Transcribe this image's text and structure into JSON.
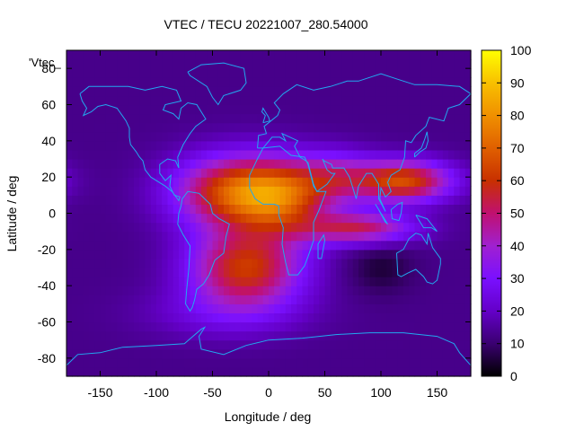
{
  "chart_data": {
    "type": "heatmap",
    "title": "VTEC / TECU 20221007_280.54000",
    "xlabel": "Longitude / deg",
    "ylabel": "Latitude / deg",
    "key_label": "'Vtec_",
    "xlim": [
      -180,
      180
    ],
    "ylim": [
      -90,
      90
    ],
    "x_ticks": [
      -150,
      -100,
      -50,
      0,
      50,
      100,
      150
    ],
    "y_ticks": [
      -80,
      -60,
      -40,
      -20,
      0,
      20,
      40,
      60,
      80
    ],
    "colorbar": {
      "range": [
        0,
        100
      ],
      "ticks": [
        0,
        10,
        20,
        30,
        40,
        50,
        60,
        70,
        80,
        90,
        100
      ],
      "colors": [
        "#000000",
        "#3a0070",
        "#6400c8",
        "#7a10ff",
        "#a020d0",
        "#c01070",
        "#c83000",
        "#e06000",
        "#f09000",
        "#f8c000",
        "#ffff00"
      ]
    },
    "grid": {
      "lon_step": 5,
      "lat_step": 5
    },
    "model": {
      "background_tec": 13,
      "components": [
        {
          "name": "americas-atlantic-peak",
          "lon": -25,
          "lat": 12,
          "sigma_lon": 40,
          "sigma_lat": 14,
          "amp": 56
        },
        {
          "name": "africa-peak",
          "lon": 15,
          "lat": 8,
          "sigma_lon": 28,
          "sigma_lat": 14,
          "amp": 30
        },
        {
          "name": "south-atlantic-band",
          "lon": -20,
          "lat": -30,
          "sigma_lon": 35,
          "sigma_lat": 15,
          "amp": 48
        },
        {
          "name": "indian-ocean-arm",
          "lon": 80,
          "lat": -8,
          "sigma_lon": 35,
          "sigma_lat": 6,
          "amp": 38
        },
        {
          "name": "asia-arm",
          "lon": 120,
          "lat": 18,
          "sigma_lon": 30,
          "sigma_lat": 8,
          "amp": 52
        },
        {
          "name": "arabia-arm",
          "lon": 60,
          "lat": 20,
          "sigma_lon": 25,
          "sigma_lat": 10,
          "amp": 25
        },
        {
          "name": "southern-hemisphere-fill",
          "lon": -40,
          "lat": -55,
          "sigma_lon": 50,
          "sigma_lat": 10,
          "amp": 10
        },
        {
          "name": "australia-low",
          "lon": 100,
          "lat": -30,
          "sigma_lon": 20,
          "sigma_lat": 10,
          "amp": -8
        }
      ]
    },
    "coastlines": [
      {
        "name": "north-america",
        "points": [
          [
            -168,
            66
          ],
          [
            -160,
            70
          ],
          [
            -140,
            70
          ],
          [
            -125,
            70
          ],
          [
            -110,
            68
          ],
          [
            -95,
            70
          ],
          [
            -82,
            68
          ],
          [
            -78,
            62
          ],
          [
            -92,
            60
          ],
          [
            -94,
            57
          ],
          [
            -85,
            55
          ],
          [
            -80,
            52
          ],
          [
            -78,
            58
          ],
          [
            -72,
            61
          ],
          [
            -64,
            60
          ],
          [
            -56,
            52
          ],
          [
            -65,
            48
          ],
          [
            -70,
            44
          ],
          [
            -76,
            38
          ],
          [
            -81,
            31
          ],
          [
            -80,
            25
          ],
          [
            -83,
            29
          ],
          [
            -90,
            30
          ],
          [
            -97,
            27
          ],
          [
            -97,
            22
          ],
          [
            -92,
            18
          ],
          [
            -87,
            21
          ],
          [
            -88,
            15
          ],
          [
            -84,
            10
          ],
          [
            -79,
            9
          ],
          [
            -80,
            7
          ],
          [
            -86,
            12
          ],
          [
            -92,
            15
          ],
          [
            -105,
            20
          ],
          [
            -110,
            24
          ],
          [
            -112,
            29
          ],
          [
            -115,
            31
          ],
          [
            -118,
            34
          ],
          [
            -123,
            38
          ],
          [
            -124,
            42
          ],
          [
            -124,
            47
          ],
          [
            -127,
            51
          ],
          [
            -135,
            58
          ],
          [
            -145,
            60
          ],
          [
            -152,
            59
          ],
          [
            -158,
            56
          ],
          [
            -165,
            54
          ],
          [
            -162,
            58
          ],
          [
            -166,
            62
          ],
          [
            -168,
            66
          ]
        ]
      },
      {
        "name": "greenland",
        "points": [
          [
            -72,
            78
          ],
          [
            -60,
            82
          ],
          [
            -40,
            83
          ],
          [
            -22,
            80
          ],
          [
            -20,
            72
          ],
          [
            -25,
            68
          ],
          [
            -40,
            65
          ],
          [
            -45,
            60
          ],
          [
            -50,
            64
          ],
          [
            -55,
            70
          ],
          [
            -70,
            76
          ],
          [
            -72,
            78
          ]
        ]
      },
      {
        "name": "south-america",
        "points": [
          [
            -77,
            8
          ],
          [
            -72,
            12
          ],
          [
            -62,
            11
          ],
          [
            -52,
            5
          ],
          [
            -50,
            0
          ],
          [
            -44,
            -3
          ],
          [
            -35,
            -6
          ],
          [
            -38,
            -13
          ],
          [
            -40,
            -22
          ],
          [
            -48,
            -26
          ],
          [
            -53,
            -34
          ],
          [
            -58,
            -39
          ],
          [
            -64,
            -42
          ],
          [
            -66,
            -48
          ],
          [
            -68,
            -52
          ],
          [
            -70,
            -54
          ],
          [
            -74,
            -50
          ],
          [
            -73,
            -42
          ],
          [
            -71,
            -30
          ],
          [
            -70,
            -18
          ],
          [
            -76,
            -12
          ],
          [
            -81,
            -6
          ],
          [
            -80,
            0
          ],
          [
            -78,
            4
          ],
          [
            -77,
            8
          ]
        ]
      },
      {
        "name": "africa",
        "points": [
          [
            -17,
            21
          ],
          [
            -10,
            30
          ],
          [
            -5,
            36
          ],
          [
            10,
            37
          ],
          [
            20,
            32
          ],
          [
            32,
            31
          ],
          [
            35,
            27
          ],
          [
            40,
            15
          ],
          [
            43,
            12
          ],
          [
            51,
            12
          ],
          [
            45,
            2
          ],
          [
            40,
            -5
          ],
          [
            40,
            -15
          ],
          [
            35,
            -24
          ],
          [
            32,
            -29
          ],
          [
            26,
            -34
          ],
          [
            18,
            -34
          ],
          [
            15,
            -27
          ],
          [
            12,
            -17
          ],
          [
            13,
            -8
          ],
          [
            9,
            -1
          ],
          [
            9,
            4
          ],
          [
            5,
            5
          ],
          [
            -5,
            5
          ],
          [
            -12,
            8
          ],
          [
            -17,
            14
          ],
          [
            -17,
            21
          ]
        ]
      },
      {
        "name": "eurasia",
        "points": [
          [
            -10,
            36
          ],
          [
            -9,
            43
          ],
          [
            -2,
            44
          ],
          [
            -4,
            48
          ],
          [
            2,
            51
          ],
          [
            8,
            54
          ],
          [
            10,
            57
          ],
          [
            5,
            61
          ],
          [
            13,
            66
          ],
          [
            25,
            71
          ],
          [
            40,
            68
          ],
          [
            55,
            70
          ],
          [
            70,
            73
          ],
          [
            80,
            73
          ],
          [
            100,
            77
          ],
          [
            115,
            74
          ],
          [
            130,
            71
          ],
          [
            150,
            71
          ],
          [
            170,
            70
          ],
          [
            180,
            66
          ],
          [
            170,
            60
          ],
          [
            160,
            58
          ],
          [
            156,
            51
          ],
          [
            143,
            53
          ],
          [
            140,
            48
          ],
          [
            131,
            43
          ],
          [
            127,
            39
          ],
          [
            122,
            40
          ],
          [
            121,
            31
          ],
          [
            117,
            24
          ],
          [
            109,
            21
          ],
          [
            106,
            17
          ],
          [
            109,
            12
          ],
          [
            104,
            9
          ],
          [
            100,
            14
          ],
          [
            99,
            8
          ],
          [
            104,
            1
          ],
          [
            98,
            8
          ],
          [
            98,
            16
          ],
          [
            92,
            22
          ],
          [
            87,
            22
          ],
          [
            80,
            15
          ],
          [
            78,
            8
          ],
          [
            72,
            20
          ],
          [
            67,
            25
          ],
          [
            57,
            25
          ],
          [
            56,
            27
          ],
          [
            49,
            29
          ],
          [
            48,
            30
          ],
          [
            52,
            24
          ],
          [
            56,
            22
          ],
          [
            59,
            22
          ],
          [
            52,
            16
          ],
          [
            43,
            12
          ],
          [
            40,
            16
          ],
          [
            35,
            28
          ],
          [
            33,
            29
          ],
          [
            28,
            31
          ],
          [
            23,
            37
          ],
          [
            26,
            40
          ],
          [
            12,
            44
          ],
          [
            15,
            40
          ],
          [
            10,
            42
          ],
          [
            3,
            42
          ],
          [
            -5,
            36
          ],
          [
            -10,
            36
          ]
        ]
      },
      {
        "name": "great-britain",
        "points": [
          [
            -5,
            50
          ],
          [
            1,
            51
          ],
          [
            0,
            53
          ],
          [
            -3,
            56
          ],
          [
            -5,
            58
          ],
          [
            -6,
            56
          ],
          [
            -3,
            54
          ],
          [
            -5,
            50
          ]
        ]
      },
      {
        "name": "australia",
        "points": [
          [
            114,
            -22
          ],
          [
            115,
            -34
          ],
          [
            118,
            -35
          ],
          [
            124,
            -33
          ],
          [
            131,
            -31
          ],
          [
            138,
            -35
          ],
          [
            141,
            -38
          ],
          [
            146,
            -39
          ],
          [
            150,
            -37
          ],
          [
            153,
            -28
          ],
          [
            153,
            -25
          ],
          [
            146,
            -19
          ],
          [
            142,
            -11
          ],
          [
            141,
            -17
          ],
          [
            136,
            -12
          ],
          [
            131,
            -11
          ],
          [
            125,
            -14
          ],
          [
            120,
            -20
          ],
          [
            114,
            -22
          ]
        ]
      },
      {
        "name": "borneo",
        "points": [
          [
            109,
            2
          ],
          [
            115,
            5
          ],
          [
            119,
            6
          ],
          [
            118,
            0
          ],
          [
            116,
            -4
          ],
          [
            110,
            -3
          ],
          [
            109,
            2
          ]
        ]
      },
      {
        "name": "sumatra",
        "points": [
          [
            95,
            5
          ],
          [
            100,
            0
          ],
          [
            106,
            -6
          ],
          [
            104,
            -5
          ],
          [
            98,
            2
          ],
          [
            95,
            5
          ]
        ]
      },
      {
        "name": "new-guinea",
        "points": [
          [
            131,
            -1
          ],
          [
            141,
            -3
          ],
          [
            150,
            -10
          ],
          [
            145,
            -8
          ],
          [
            138,
            -8
          ],
          [
            131,
            -1
          ]
        ]
      },
      {
        "name": "japan",
        "points": [
          [
            130,
            31
          ],
          [
            135,
            34
          ],
          [
            140,
            36
          ],
          [
            142,
            40
          ],
          [
            141,
            45
          ],
          [
            139,
            41
          ],
          [
            136,
            36
          ],
          [
            130,
            33
          ],
          [
            130,
            31
          ]
        ]
      },
      {
        "name": "madagascar",
        "points": [
          [
            44,
            -25
          ],
          [
            47,
            -25
          ],
          [
            50,
            -15
          ],
          [
            49,
            -12
          ],
          [
            44,
            -17
          ],
          [
            44,
            -25
          ]
        ]
      },
      {
        "name": "antarctica",
        "points": [
          [
            -180,
            -84
          ],
          [
            -170,
            -78
          ],
          [
            -150,
            -77
          ],
          [
            -130,
            -74
          ],
          [
            -100,
            -73
          ],
          [
            -75,
            -72
          ],
          [
            -60,
            -64
          ],
          [
            -57,
            -63
          ],
          [
            -62,
            -68
          ],
          [
            -60,
            -75
          ],
          [
            -40,
            -78
          ],
          [
            -20,
            -73
          ],
          [
            0,
            -70
          ],
          [
            30,
            -69
          ],
          [
            60,
            -67
          ],
          [
            90,
            -66
          ],
          [
            120,
            -66
          ],
          [
            150,
            -68
          ],
          [
            165,
            -72
          ],
          [
            170,
            -77
          ],
          [
            180,
            -84
          ]
        ]
      }
    ]
  }
}
